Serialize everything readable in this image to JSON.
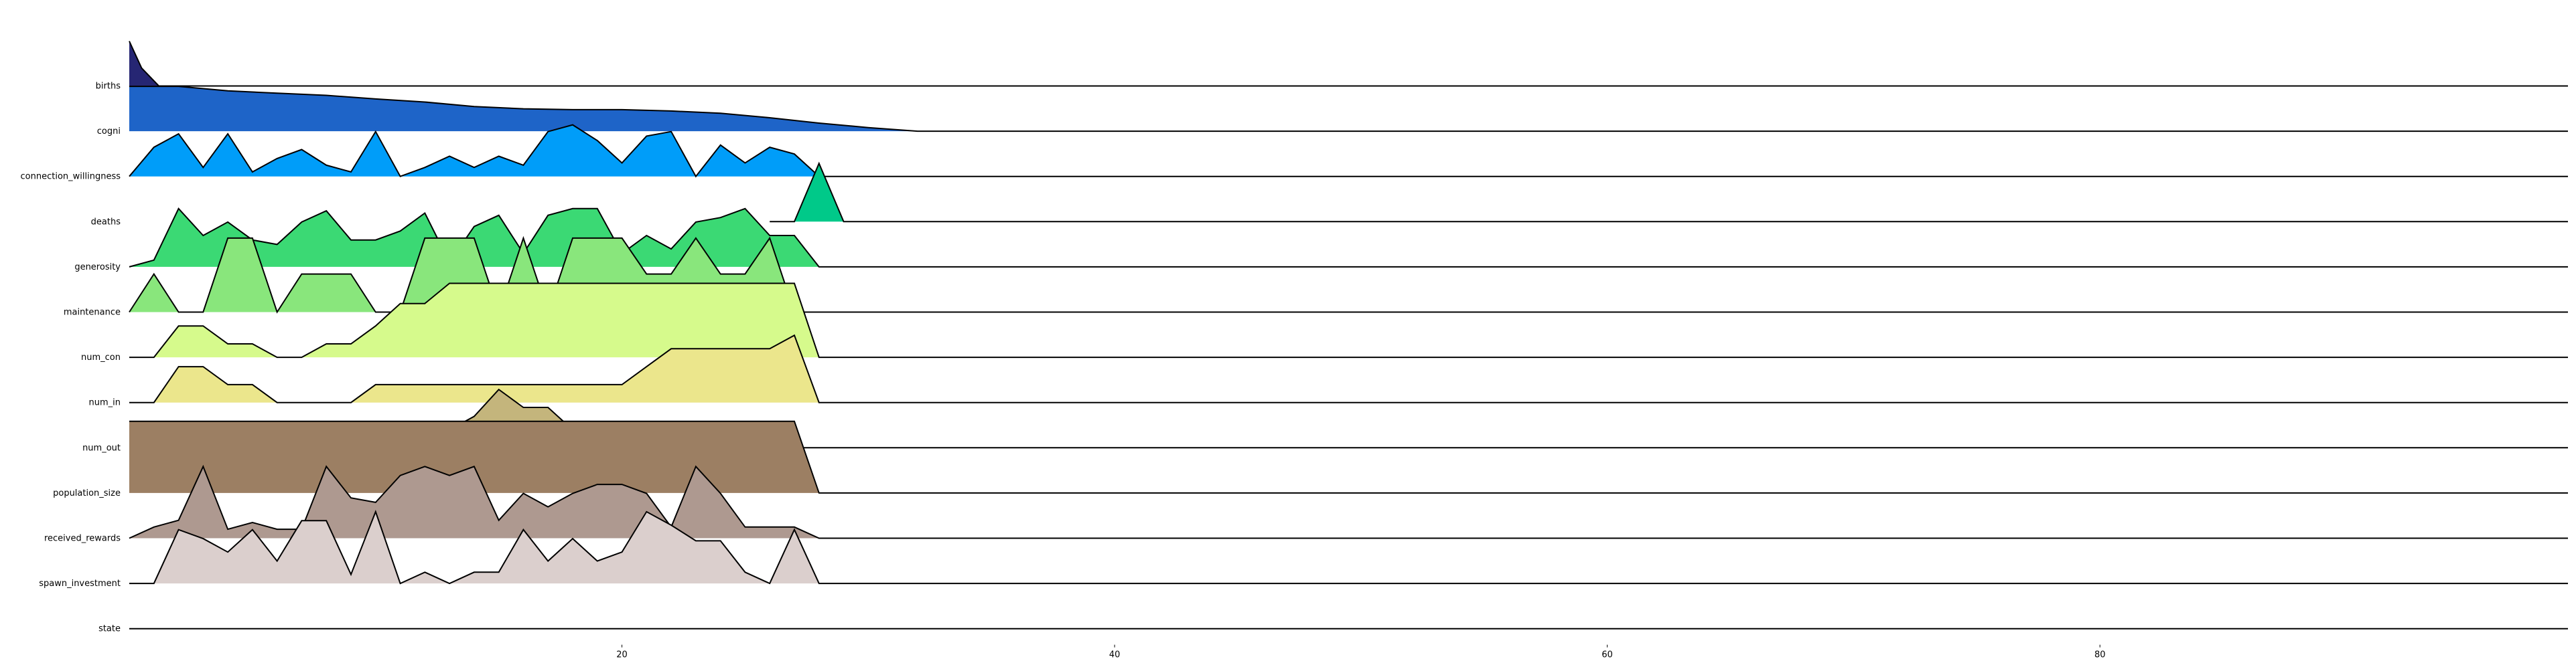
{
  "chart_data": {
    "type": "area",
    "title": "",
    "xlabel": "",
    "ylabel": "",
    "xlim": [
      0,
      99
    ],
    "x_ticks": [
      20,
      40,
      60,
      80
    ],
    "x_tick_labels": [
      "20",
      "40",
      "60",
      "80"
    ],
    "grid": false,
    "legend": "none",
    "series": [
      {
        "label": "births",
        "color": "#262673",
        "x": [
          0,
          0.5,
          1.2,
          99
        ],
        "y": [
          1.0,
          0.4,
          0,
          0
        ]
      },
      {
        "label": "cogni",
        "color": "#1e64c8",
        "x": [
          0,
          2,
          4,
          6,
          8,
          10,
          12,
          14,
          16,
          18,
          20,
          22,
          24,
          26,
          28,
          30,
          32,
          34,
          36,
          38,
          40,
          42,
          44,
          46,
          48,
          99
        ],
        "y": [
          1.0,
          1.0,
          0.9,
          0.85,
          0.8,
          0.72,
          0.65,
          0.55,
          0.5,
          0.48,
          0.48,
          0.45,
          0.4,
          0.3,
          0.18,
          0.08,
          0,
          0,
          0,
          0,
          0,
          0,
          0,
          0,
          0,
          0
        ]
      },
      {
        "label": "connection_willingness",
        "color": "#009df9",
        "x": [
          0,
          1,
          2,
          3,
          4,
          5,
          6,
          7,
          8,
          9,
          10,
          11,
          12,
          13,
          14,
          15,
          16,
          17,
          18,
          19,
          20,
          21,
          22,
          23,
          24,
          25,
          26,
          27,
          28,
          99
        ],
        "y": [
          0,
          0.65,
          0.95,
          0.2,
          0.95,
          0.1,
          0.4,
          0.6,
          0.25,
          0.1,
          1.0,
          0,
          0.2,
          0.45,
          0.2,
          0.45,
          0.25,
          1.0,
          1.15,
          0.8,
          0.3,
          0.9,
          1.0,
          0,
          0.7,
          0.3,
          0.65,
          0.5,
          0,
          0
        ]
      },
      {
        "label": "deaths",
        "color": "#00c989",
        "x": [
          26,
          27,
          28,
          29,
          99
        ],
        "y": [
          0,
          0,
          1.3,
          0,
          0
        ]
      },
      {
        "label": "generosity",
        "color": "#3bd974",
        "x": [
          0,
          1,
          2,
          3,
          4,
          5,
          6,
          7,
          8,
          9,
          10,
          11,
          12,
          13,
          14,
          15,
          16,
          17,
          18,
          19,
          20,
          21,
          22,
          23,
          24,
          25,
          26,
          27,
          28,
          99
        ],
        "y": [
          0,
          0.15,
          1.3,
          0.7,
          1.0,
          0.6,
          0.5,
          1.0,
          1.25,
          0.6,
          0.6,
          0.8,
          1.2,
          0.1,
          0.9,
          1.15,
          0.3,
          1.15,
          1.3,
          1.3,
          0.3,
          0.7,
          0.4,
          1.0,
          1.1,
          1.3,
          0.7,
          0.7,
          0,
          0
        ]
      },
      {
        "label": "maintenance",
        "color": "#89e67c",
        "x": [
          0,
          1,
          2,
          3,
          4,
          5,
          6,
          7,
          8,
          9,
          10,
          11,
          12,
          13,
          14,
          15,
          16,
          17,
          18,
          19,
          20,
          21,
          22,
          23,
          24,
          25,
          26,
          27,
          28,
          99
        ],
        "y": [
          0,
          0.85,
          0,
          0,
          1.65,
          1.65,
          0,
          0.85,
          0.85,
          0.85,
          0,
          0,
          1.65,
          1.65,
          1.65,
          0,
          1.65,
          0,
          1.65,
          1.65,
          1.65,
          0.85,
          0.85,
          1.65,
          0.85,
          0.85,
          1.65,
          0,
          0,
          0
        ]
      },
      {
        "label": "num_con",
        "color": "#d6fa8c",
        "x": [
          0,
          1,
          2,
          3,
          4,
          5,
          6,
          7,
          8,
          9,
          10,
          11,
          12,
          13,
          14,
          15,
          16,
          17,
          18,
          19,
          20,
          21,
          22,
          23,
          24,
          25,
          26,
          27,
          28,
          99
        ],
        "y": [
          0,
          0,
          0.7,
          0.7,
          0.3,
          0.3,
          0,
          0,
          0.3,
          0.3,
          0.7,
          1.2,
          1.2,
          1.65,
          1.65,
          1.65,
          1.65,
          1.65,
          1.65,
          1.65,
          1.65,
          1.65,
          1.65,
          1.65,
          1.65,
          1.65,
          1.65,
          1.65,
          0,
          0
        ]
      },
      {
        "label": "num_in",
        "color": "#ebe68c",
        "x": [
          0,
          1,
          2,
          3,
          4,
          5,
          6,
          7,
          8,
          9,
          10,
          11,
          12,
          13,
          14,
          15,
          16,
          17,
          18,
          19,
          20,
          21,
          22,
          23,
          24,
          25,
          26,
          27,
          28,
          99
        ],
        "y": [
          0,
          0,
          0.8,
          0.8,
          0.4,
          0.4,
          0,
          0,
          0,
          0,
          0.4,
          0.4,
          0.4,
          0.4,
          0.4,
          0.4,
          0.4,
          0.4,
          0.4,
          0.4,
          0.4,
          0.8,
          1.2,
          1.2,
          1.2,
          1.2,
          1.2,
          1.5,
          0,
          0
        ]
      },
      {
        "label": "num_out",
        "color": "#c4b57c",
        "x": [
          0,
          10,
          11,
          12,
          13,
          14,
          15,
          16,
          17,
          18,
          19,
          20,
          21,
          22,
          99
        ],
        "y": [
          0,
          0,
          0.1,
          0.1,
          0.4,
          0.7,
          1.3,
          0.9,
          0.9,
          0.4,
          0.4,
          0.4,
          0.1,
          0,
          0
        ]
      },
      {
        "label": "population_size",
        "color": "#9c7f63",
        "x": [
          0,
          27,
          28,
          99
        ],
        "y": [
          1.6,
          1.6,
          0,
          0
        ]
      },
      {
        "label": "received_rewards",
        "color": "#ae9990",
        "x": [
          0,
          1,
          2,
          3,
          4,
          5,
          6,
          7,
          8,
          9,
          10,
          11,
          12,
          13,
          14,
          15,
          16,
          17,
          18,
          19,
          20,
          21,
          22,
          23,
          24,
          25,
          26,
          27,
          28,
          99
        ],
        "y": [
          0,
          0.25,
          0.4,
          1.6,
          0.2,
          0.35,
          0.2,
          0.2,
          1.6,
          0.9,
          0.8,
          1.4,
          1.6,
          1.4,
          1.6,
          0.4,
          1.0,
          0.7,
          1.0,
          1.2,
          1.2,
          1.0,
          0.25,
          1.6,
          1.0,
          0.25,
          0.25,
          0.25,
          0,
          0
        ]
      },
      {
        "label": "spawn_investment",
        "color": "#dbcfcd",
        "x": [
          0,
          1,
          2,
          3,
          4,
          5,
          6,
          7,
          8,
          9,
          10,
          11,
          12,
          13,
          14,
          15,
          16,
          17,
          18,
          19,
          20,
          21,
          22,
          23,
          24,
          25,
          26,
          27,
          28,
          99
        ],
        "y": [
          0,
          0,
          1.2,
          1.0,
          0.7,
          1.2,
          0.5,
          1.4,
          1.4,
          0.2,
          1.6,
          0,
          0.25,
          0,
          0.25,
          0.25,
          1.2,
          0.5,
          1.0,
          0.5,
          0.7,
          1.6,
          1.3,
          0.95,
          0.95,
          0.25,
          0,
          1.2,
          0,
          0
        ]
      },
      {
        "label": "state",
        "color": "#ffffff",
        "x": [
          0,
          99
        ],
        "y": [
          0,
          0
        ]
      }
    ]
  }
}
